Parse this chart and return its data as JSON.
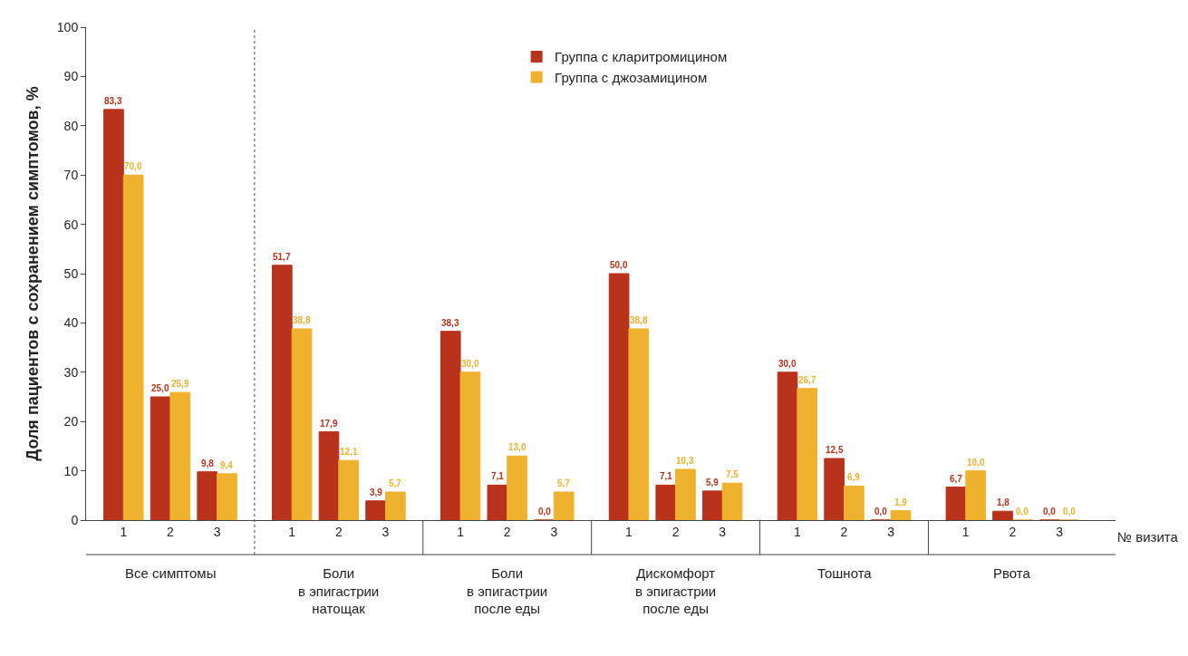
{
  "chart_data": {
    "type": "bar",
    "ylabel": "Доля пациентов с сохранением симптомов, %",
    "categories": [
      "1",
      "2",
      "3",
      "1",
      "2",
      "3",
      "1",
      "2",
      "3",
      "1",
      "2",
      "3",
      "1",
      "2",
      "3",
      "1",
      "2",
      "3"
    ],
    "series": [
      {
        "name": "Группа с кларитромицином",
        "color": "#b8321c",
        "values": [
          83.3,
          25.0,
          9.8,
          51.7,
          17.9,
          3.9,
          38.3,
          7.1,
          0.0,
          50.0,
          7.1,
          5.9,
          30.0,
          12.5,
          0.0,
          6.7,
          1.8,
          0.0
        ],
        "value_labels": [
          "83,3",
          "25,0",
          "9,8",
          "51,7",
          "17,9",
          "3,9",
          "38,3",
          "7,1",
          "0,0",
          "50,0",
          "7,1",
          "5,9",
          "30,0",
          "12,5",
          "0,0",
          "6,7",
          "1,8",
          "0,0"
        ]
      },
      {
        "name": "Группа с джозамицином",
        "color": "#eeb22e",
        "values": [
          70.0,
          25.9,
          9.4,
          38.8,
          12.1,
          5.7,
          30.0,
          13.0,
          5.7,
          38.8,
          10.3,
          7.5,
          26.7,
          6.9,
          1.9,
          10.0,
          0.0,
          0.0
        ],
        "value_labels": [
          "70,0",
          "25,9",
          "9,4",
          "38,8",
          "12,1",
          "5,7",
          "30,0",
          "13,0",
          "5,7",
          "38,8",
          "10,3",
          "7,5",
          "26,7",
          "6,9",
          "1,9",
          "10,0",
          "0,0",
          "0,0"
        ]
      }
    ],
    "annotations": [
      "Все симптомы",
      "Боли\nв эпигастрии\nнатощак",
      "Боли\nв эпигастрии\nпосле еды",
      "Дискомфорт\nв эпигастрии\nпосле еды",
      "Тошнота",
      "Рвота",
      "№ визита"
    ],
    "ylim": [
      0,
      100
    ],
    "yticks": [
      0,
      10,
      20,
      30,
      40,
      50,
      60,
      70,
      80,
      90,
      100
    ],
    "legend": "top"
  }
}
